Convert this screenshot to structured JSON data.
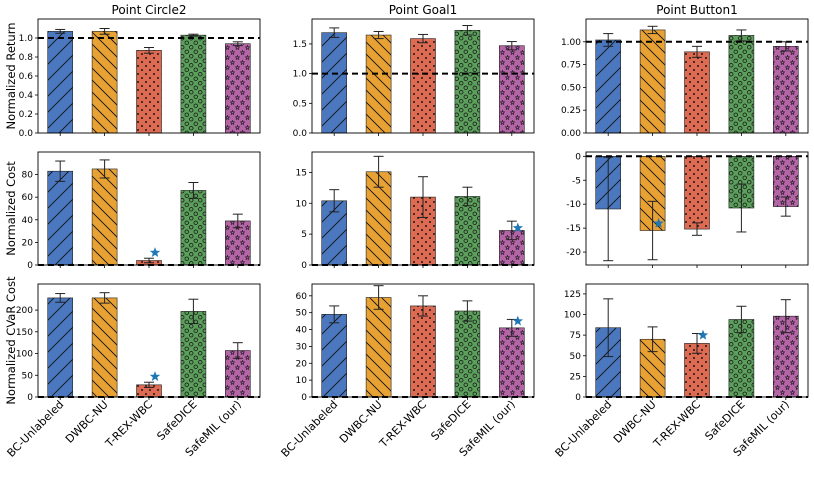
{
  "colors": {
    "BC-Unlabeled": "#4a77bd",
    "DWBC-NU": "#e8a133",
    "T-REX-WBC": "#dd6a52",
    "SafeDICE": "#5c9f5c",
    "SafeMIL (our)": "#b365a6",
    "star": "#1f77b4"
  },
  "chart_data": [
    {
      "type": "bar",
      "title": "Point Circle2",
      "ylabel": "Normalized Return",
      "categories": [
        "BC-Unlabeled",
        "DWBC-NU",
        "T-REX-WBC",
        "SafeDICE",
        "SafeMIL (our)"
      ],
      "values": [
        1.07,
        1.07,
        0.87,
        1.03,
        0.94
      ],
      "errors": [
        0.02,
        0.03,
        0.03,
        0.01,
        0.02
      ],
      "ylim": [
        0,
        1.2
      ],
      "yticks": [
        "0.0",
        "0.2",
        "0.4",
        "0.6",
        "0.8",
        "1.0"
      ],
      "reference": 1.0,
      "star": null
    },
    {
      "type": "bar",
      "title": "Point Goal1",
      "ylabel": "",
      "categories": [
        "BC-Unlabeled",
        "DWBC-NU",
        "T-REX-WBC",
        "SafeDICE",
        "SafeMIL (our)"
      ],
      "values": [
        1.69,
        1.65,
        1.59,
        1.73,
        1.47
      ],
      "errors": [
        0.08,
        0.06,
        0.07,
        0.08,
        0.07
      ],
      "ylim": [
        0,
        1.92
      ],
      "yticks": [
        "0.0",
        "0.5",
        "1.0",
        "1.5"
      ],
      "reference": 1.0,
      "star": null
    },
    {
      "type": "bar",
      "title": "Point Button1",
      "ylabel": "",
      "categories": [
        "BC-Unlabeled",
        "DWBC-NU",
        "T-REX-WBC",
        "SafeDICE",
        "SafeMIL (our)"
      ],
      "values": [
        1.02,
        1.13,
        0.89,
        1.07,
        0.95
      ],
      "errors": [
        0.07,
        0.04,
        0.06,
        0.06,
        0.05
      ],
      "ylim": [
        0,
        1.25
      ],
      "yticks": [
        "0.00",
        "0.25",
        "0.50",
        "0.75",
        "1.00"
      ],
      "reference": 1.0,
      "star": null
    },
    {
      "type": "bar",
      "title": "",
      "ylabel": "Normalized Cost",
      "categories": [
        "BC-Unlabeled",
        "DWBC-NU",
        "T-REX-WBC",
        "SafeDICE",
        "SafeMIL (our)"
      ],
      "values": [
        83,
        85,
        4,
        66,
        39
      ],
      "errors": [
        9,
        8,
        2,
        7,
        6
      ],
      "ylim": [
        0,
        100
      ],
      "yticks": [
        "0",
        "20",
        "40",
        "60",
        "80"
      ],
      "reference": 0,
      "star": [
        2,
        11
      ]
    },
    {
      "type": "bar",
      "title": "",
      "ylabel": "",
      "categories": [
        "BC-Unlabeled",
        "DWBC-NU",
        "T-REX-WBC",
        "SafeDICE",
        "SafeMIL (our)"
      ],
      "values": [
        10.4,
        15.1,
        11.0,
        11.1,
        5.6
      ],
      "errors": [
        1.8,
        2.5,
        3.3,
        1.5,
        1.5
      ],
      "ylim": [
        0,
        18.3
      ],
      "yticks": [
        "0",
        "5",
        "10",
        "15"
      ],
      "reference": 0,
      "star": [
        4,
        6
      ]
    },
    {
      "type": "bar",
      "title": "",
      "ylabel": "",
      "categories": [
        "BC-Unlabeled",
        "DWBC-NU",
        "T-REX-WBC",
        "SafeDICE",
        "SafeMIL (our)"
      ],
      "values": [
        -11.0,
        -15.5,
        -15.2,
        -10.8,
        -10.5
      ],
      "errors": [
        10.8,
        6.1,
        1.3,
        5.0,
        2.0
      ],
      "ylim": [
        -22.7,
        0.9
      ],
      "yticks": [
        "0",
        "-5",
        "-10",
        "-15",
        "-20"
      ],
      "reference": 0,
      "star": [
        1,
        -14
      ]
    },
    {
      "type": "bar",
      "title": "",
      "ylabel": "Normalized CVaR Cost",
      "categories": [
        "BC-Unlabeled",
        "DWBC-NU",
        "T-REX-WBC",
        "SafeDICE",
        "SafeMIL (our)"
      ],
      "values": [
        228,
        228,
        28,
        197,
        107
      ],
      "errors": [
        10,
        12,
        6,
        28,
        18
      ],
      "ylim": [
        0,
        260
      ],
      "yticks": [
        "0",
        "50",
        "100",
        "150",
        "200"
      ],
      "reference": 0,
      "star": [
        2,
        47
      ]
    },
    {
      "type": "bar",
      "title": "",
      "ylabel": "",
      "categories": [
        "BC-Unlabeled",
        "DWBC-NU",
        "T-REX-WBC",
        "SafeDICE",
        "SafeMIL (our)"
      ],
      "values": [
        49,
        59,
        54,
        51,
        41
      ],
      "errors": [
        5,
        7,
        6,
        6,
        5
      ],
      "ylim": [
        0,
        67
      ],
      "yticks": [
        "0",
        "10",
        "20",
        "30",
        "40",
        "50",
        "60"
      ],
      "reference": 0,
      "star": [
        4,
        45
      ]
    },
    {
      "type": "bar",
      "title": "",
      "ylabel": "",
      "categories": [
        "BC-Unlabeled",
        "DWBC-NU",
        "T-REX-WBC",
        "SafeDICE",
        "SafeMIL (our)"
      ],
      "values": [
        84,
        70,
        65,
        94,
        98
      ],
      "errors": [
        35,
        15,
        12,
        16,
        20
      ],
      "ylim": [
        0,
        137
      ],
      "yticks": [
        "0",
        "25",
        "50",
        "75",
        "100",
        "125"
      ],
      "reference": 0,
      "star": [
        2,
        75
      ]
    }
  ]
}
